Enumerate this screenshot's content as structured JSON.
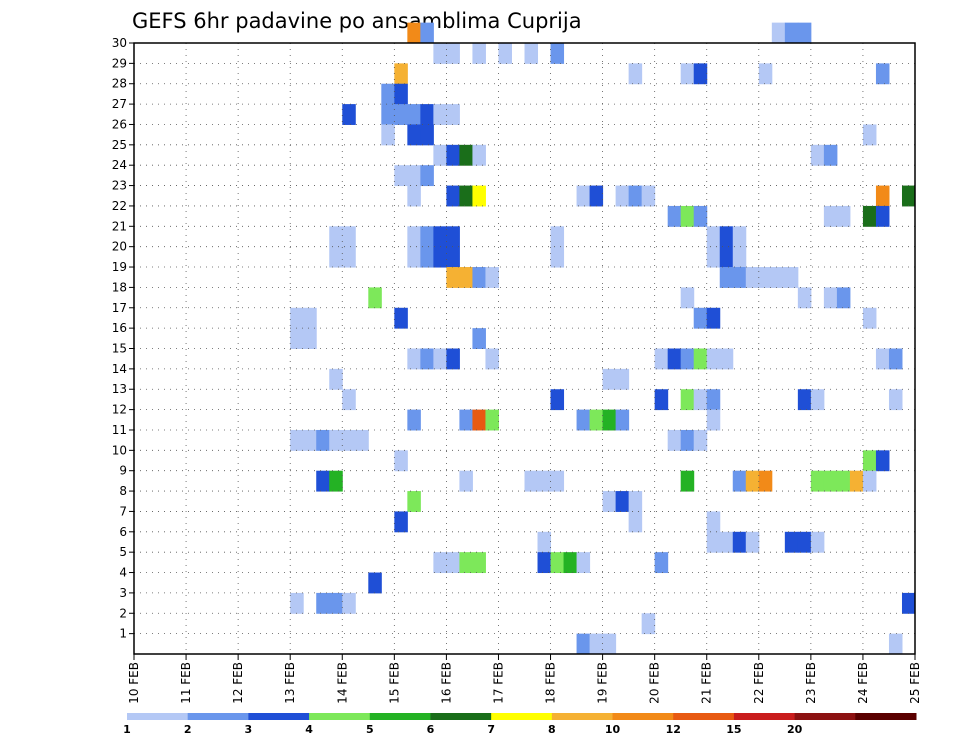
{
  "chart_data": {
    "type": "heatmap",
    "title": "GEFS 6hr padavine po ansamblima Cuprija",
    "x_ticks": [
      "10 FEB",
      "11 FEB",
      "12 FEB",
      "13 FEB",
      "14 FEB",
      "15 FEB",
      "16 FEB",
      "17 FEB",
      "18 FEB",
      "19 FEB",
      "20 FEB",
      "21 FEB",
      "22 FEB",
      "23 FEB",
      "24 FEB",
      "25 FEB"
    ],
    "y_ticks": [
      "1",
      "2",
      "3",
      "4",
      "5",
      "6",
      "7",
      "8",
      "9",
      "10",
      "11",
      "12",
      "13",
      "14",
      "15",
      "16",
      "17",
      "18",
      "19",
      "20",
      "21",
      "22",
      "23",
      "24",
      "25",
      "26",
      "27",
      "28",
      "29",
      "30"
    ],
    "x_unit": "6-hour step from 10 FEB 00Z",
    "xlim": [
      0,
      60
    ],
    "ylim": [
      0,
      30
    ],
    "grid": true,
    "legend_placement": "bottom",
    "legend": {
      "labels": [
        "1",
        "2",
        "3",
        "4",
        "5",
        "6",
        "7",
        "8",
        "10",
        "12",
        "15",
        "20"
      ],
      "colors": [
        "#b4c8f5",
        "#6a96ec",
        "#1f4fd6",
        "#7de85a",
        "#24b224",
        "#1a6e1a",
        "#ffff00",
        "#f5b133",
        "#f28a18",
        "#e85a12",
        "#c91d1d",
        "#8c1111",
        "#5a0000"
      ]
    },
    "cells": [
      {
        "m": 30,
        "t": 21,
        "v": "#f28a18"
      },
      {
        "m": 30,
        "t": 22,
        "v": "#6a96ec"
      },
      {
        "m": 30,
        "t": 49,
        "v": "#b4c8f5"
      },
      {
        "m": 30,
        "t": 50,
        "v": "#6a96ec"
      },
      {
        "m": 30,
        "t": 51,
        "v": "#6a96ec"
      },
      {
        "m": 29,
        "t": 23,
        "v": "#b4c8f5"
      },
      {
        "m": 29,
        "t": 24,
        "v": "#b4c8f5"
      },
      {
        "m": 29,
        "t": 26,
        "v": "#b4c8f5"
      },
      {
        "m": 29,
        "t": 28,
        "v": "#b4c8f5"
      },
      {
        "m": 29,
        "t": 30,
        "v": "#b4c8f5"
      },
      {
        "m": 29,
        "t": 32,
        "v": "#6a96ec"
      },
      {
        "m": 28,
        "t": 20,
        "v": "#f5b133"
      },
      {
        "m": 28,
        "t": 38,
        "v": "#b4c8f5"
      },
      {
        "m": 28,
        "t": 42,
        "v": "#b4c8f5"
      },
      {
        "m": 28,
        "t": 43,
        "v": "#1f4fd6"
      },
      {
        "m": 28,
        "t": 48,
        "v": "#b4c8f5"
      },
      {
        "m": 28,
        "t": 57,
        "v": "#6a96ec"
      },
      {
        "m": 27,
        "t": 19,
        "v": "#6a96ec"
      },
      {
        "m": 27,
        "t": 20,
        "v": "#1f4fd6"
      },
      {
        "m": 26,
        "t": 16,
        "v": "#1f4fd6"
      },
      {
        "m": 26,
        "t": 19,
        "v": "#6a96ec"
      },
      {
        "m": 26,
        "t": 20,
        "v": "#6a96ec"
      },
      {
        "m": 26,
        "t": 21,
        "v": "#6a96ec"
      },
      {
        "m": 26,
        "t": 22,
        "v": "#1f4fd6"
      },
      {
        "m": 26,
        "t": 23,
        "v": "#b4c8f5"
      },
      {
        "m": 26,
        "t": 24,
        "v": "#b4c8f5"
      },
      {
        "m": 25,
        "t": 19,
        "v": "#b4c8f5"
      },
      {
        "m": 25,
        "t": 21,
        "v": "#1f4fd6"
      },
      {
        "m": 25,
        "t": 22,
        "v": "#1f4fd6"
      },
      {
        "m": 25,
        "t": 56,
        "v": "#b4c8f5"
      },
      {
        "m": 24,
        "t": 23,
        "v": "#b4c8f5"
      },
      {
        "m": 24,
        "t": 24,
        "v": "#1f4fd6"
      },
      {
        "m": 24,
        "t": 25,
        "v": "#1a6e1a"
      },
      {
        "m": 24,
        "t": 26,
        "v": "#b4c8f5"
      },
      {
        "m": 24,
        "t": 52,
        "v": "#b4c8f5"
      },
      {
        "m": 24,
        "t": 53,
        "v": "#6a96ec"
      },
      {
        "m": 23,
        "t": 20,
        "v": "#b4c8f5"
      },
      {
        "m": 23,
        "t": 21,
        "v": "#b4c8f5"
      },
      {
        "m": 23,
        "t": 22,
        "v": "#6a96ec"
      },
      {
        "m": 22,
        "t": 21,
        "v": "#b4c8f5"
      },
      {
        "m": 22,
        "t": 24,
        "v": "#1f4fd6"
      },
      {
        "m": 22,
        "t": 25,
        "v": "#1a6e1a"
      },
      {
        "m": 22,
        "t": 26,
        "v": "#ffff00"
      },
      {
        "m": 22,
        "t": 34,
        "v": "#b4c8f5"
      },
      {
        "m": 22,
        "t": 35,
        "v": "#1f4fd6"
      },
      {
        "m": 22,
        "t": 37,
        "v": "#b4c8f5"
      },
      {
        "m": 22,
        "t": 38,
        "v": "#6a96ec"
      },
      {
        "m": 22,
        "t": 39,
        "v": "#b4c8f5"
      },
      {
        "m": 22,
        "t": 57,
        "v": "#f28a18"
      },
      {
        "m": 22,
        "t": 59,
        "v": "#1a6e1a"
      },
      {
        "m": 21,
        "t": 41,
        "v": "#6a96ec"
      },
      {
        "m": 21,
        "t": 42,
        "v": "#7de85a"
      },
      {
        "m": 21,
        "t": 43,
        "v": "#6a96ec"
      },
      {
        "m": 21,
        "t": 53,
        "v": "#b4c8f5"
      },
      {
        "m": 21,
        "t": 54,
        "v": "#b4c8f5"
      },
      {
        "m": 21,
        "t": 56,
        "v": "#1a6e1a"
      },
      {
        "m": 21,
        "t": 57,
        "v": "#1f4fd6"
      },
      {
        "m": 20,
        "t": 15,
        "v": "#b4c8f5"
      },
      {
        "m": 20,
        "t": 16,
        "v": "#b4c8f5"
      },
      {
        "m": 20,
        "t": 21,
        "v": "#b4c8f5"
      },
      {
        "m": 20,
        "t": 22,
        "v": "#6a96ec"
      },
      {
        "m": 20,
        "t": 23,
        "v": "#1f4fd6"
      },
      {
        "m": 20,
        "t": 24,
        "v": "#1f4fd6"
      },
      {
        "m": 20,
        "t": 32,
        "v": "#b4c8f5"
      },
      {
        "m": 20,
        "t": 44,
        "v": "#b4c8f5"
      },
      {
        "m": 20,
        "t": 45,
        "v": "#1f4fd6"
      },
      {
        "m": 20,
        "t": 46,
        "v": "#b4c8f5"
      },
      {
        "m": 19,
        "t": 15,
        "v": "#b4c8f5"
      },
      {
        "m": 19,
        "t": 16,
        "v": "#b4c8f5"
      },
      {
        "m": 19,
        "t": 21,
        "v": "#b4c8f5"
      },
      {
        "m": 19,
        "t": 22,
        "v": "#6a96ec"
      },
      {
        "m": 19,
        "t": 23,
        "v": "#1f4fd6"
      },
      {
        "m": 19,
        "t": 24,
        "v": "#1f4fd6"
      },
      {
        "m": 19,
        "t": 32,
        "v": "#b4c8f5"
      },
      {
        "m": 19,
        "t": 44,
        "v": "#b4c8f5"
      },
      {
        "m": 19,
        "t": 45,
        "v": "#1f4fd6"
      },
      {
        "m": 19,
        "t": 46,
        "v": "#b4c8f5"
      },
      {
        "m": 18,
        "t": 24,
        "v": "#f5b133"
      },
      {
        "m": 18,
        "t": 25,
        "v": "#f5b133"
      },
      {
        "m": 18,
        "t": 26,
        "v": "#6a96ec"
      },
      {
        "m": 18,
        "t": 27,
        "v": "#b4c8f5"
      },
      {
        "m": 18,
        "t": 45,
        "v": "#6a96ec"
      },
      {
        "m": 18,
        "t": 46,
        "v": "#6a96ec"
      },
      {
        "m": 18,
        "t": 47,
        "v": "#b4c8f5"
      },
      {
        "m": 18,
        "t": 48,
        "v": "#b4c8f5"
      },
      {
        "m": 18,
        "t": 49,
        "v": "#b4c8f5"
      },
      {
        "m": 18,
        "t": 50,
        "v": "#b4c8f5"
      },
      {
        "m": 17,
        "t": 18,
        "v": "#7de85a"
      },
      {
        "m": 17,
        "t": 42,
        "v": "#b4c8f5"
      },
      {
        "m": 17,
        "t": 51,
        "v": "#b4c8f5"
      },
      {
        "m": 17,
        "t": 53,
        "v": "#b4c8f5"
      },
      {
        "m": 17,
        "t": 54,
        "v": "#6a96ec"
      },
      {
        "m": 16,
        "t": 12,
        "v": "#b4c8f5"
      },
      {
        "m": 16,
        "t": 13,
        "v": "#b4c8f5"
      },
      {
        "m": 16,
        "t": 20,
        "v": "#1f4fd6"
      },
      {
        "m": 16,
        "t": 43,
        "v": "#6a96ec"
      },
      {
        "m": 16,
        "t": 44,
        "v": "#1f4fd6"
      },
      {
        "m": 16,
        "t": 56,
        "v": "#b4c8f5"
      },
      {
        "m": 15,
        "t": 12,
        "v": "#b4c8f5"
      },
      {
        "m": 15,
        "t": 13,
        "v": "#b4c8f5"
      },
      {
        "m": 15,
        "t": 26,
        "v": "#6a96ec"
      },
      {
        "m": 14,
        "t": 21,
        "v": "#b4c8f5"
      },
      {
        "m": 14,
        "t": 22,
        "v": "#6a96ec"
      },
      {
        "m": 14,
        "t": 23,
        "v": "#b4c8f5"
      },
      {
        "m": 14,
        "t": 24,
        "v": "#1f4fd6"
      },
      {
        "m": 14,
        "t": 27,
        "v": "#b4c8f5"
      },
      {
        "m": 14,
        "t": 40,
        "v": "#b4c8f5"
      },
      {
        "m": 14,
        "t": 41,
        "v": "#1f4fd6"
      },
      {
        "m": 14,
        "t": 42,
        "v": "#6a96ec"
      },
      {
        "m": 14,
        "t": 43,
        "v": "#7de85a"
      },
      {
        "m": 14,
        "t": 44,
        "v": "#b4c8f5"
      },
      {
        "m": 14,
        "t": 45,
        "v": "#b4c8f5"
      },
      {
        "m": 14,
        "t": 57,
        "v": "#b4c8f5"
      },
      {
        "m": 14,
        "t": 58,
        "v": "#6a96ec"
      },
      {
        "m": 13,
        "t": 15,
        "v": "#b4c8f5"
      },
      {
        "m": 13,
        "t": 36,
        "v": "#b4c8f5"
      },
      {
        "m": 13,
        "t": 37,
        "v": "#b4c8f5"
      },
      {
        "m": 12,
        "t": 16,
        "v": "#b4c8f5"
      },
      {
        "m": 12,
        "t": 32,
        "v": "#1f4fd6"
      },
      {
        "m": 12,
        "t": 40,
        "v": "#1f4fd6"
      },
      {
        "m": 12,
        "t": 42,
        "v": "#7de85a"
      },
      {
        "m": 12,
        "t": 43,
        "v": "#b4c8f5"
      },
      {
        "m": 12,
        "t": 44,
        "v": "#6a96ec"
      },
      {
        "m": 12,
        "t": 51,
        "v": "#1f4fd6"
      },
      {
        "m": 12,
        "t": 52,
        "v": "#b4c8f5"
      },
      {
        "m": 12,
        "t": 58,
        "v": "#b4c8f5"
      },
      {
        "m": 11,
        "t": 21,
        "v": "#6a96ec"
      },
      {
        "m": 11,
        "t": 25,
        "v": "#6a96ec"
      },
      {
        "m": 11,
        "t": 26,
        "v": "#e85a12"
      },
      {
        "m": 11,
        "t": 27,
        "v": "#7de85a"
      },
      {
        "m": 11,
        "t": 34,
        "v": "#6a96ec"
      },
      {
        "m": 11,
        "t": 35,
        "v": "#7de85a"
      },
      {
        "m": 11,
        "t": 36,
        "v": "#24b224"
      },
      {
        "m": 11,
        "t": 37,
        "v": "#6a96ec"
      },
      {
        "m": 11,
        "t": 44,
        "v": "#b4c8f5"
      },
      {
        "m": 10,
        "t": 12,
        "v": "#b4c8f5"
      },
      {
        "m": 10,
        "t": 13,
        "v": "#b4c8f5"
      },
      {
        "m": 10,
        "t": 14,
        "v": "#6a96ec"
      },
      {
        "m": 10,
        "t": 15,
        "v": "#b4c8f5"
      },
      {
        "m": 10,
        "t": 16,
        "v": "#b4c8f5"
      },
      {
        "m": 10,
        "t": 17,
        "v": "#b4c8f5"
      },
      {
        "m": 10,
        "t": 41,
        "v": "#b4c8f5"
      },
      {
        "m": 10,
        "t": 42,
        "v": "#6a96ec"
      },
      {
        "m": 10,
        "t": 43,
        "v": "#b4c8f5"
      },
      {
        "m": 9,
        "t": 20,
        "v": "#b4c8f5"
      },
      {
        "m": 9,
        "t": 56,
        "v": "#7de85a"
      },
      {
        "m": 9,
        "t": 57,
        "v": "#1f4fd6"
      },
      {
        "m": 8,
        "t": 14,
        "v": "#1f4fd6"
      },
      {
        "m": 8,
        "t": 15,
        "v": "#24b224"
      },
      {
        "m": 8,
        "t": 25,
        "v": "#b4c8f5"
      },
      {
        "m": 8,
        "t": 30,
        "v": "#b4c8f5"
      },
      {
        "m": 8,
        "t": 31,
        "v": "#b4c8f5"
      },
      {
        "m": 8,
        "t": 32,
        "v": "#b4c8f5"
      },
      {
        "m": 8,
        "t": 42,
        "v": "#24b224"
      },
      {
        "m": 8,
        "t": 46,
        "v": "#6a96ec"
      },
      {
        "m": 8,
        "t": 47,
        "v": "#f5b133"
      },
      {
        "m": 8,
        "t": 48,
        "v": "#f28a18"
      },
      {
        "m": 8,
        "t": 52,
        "v": "#7de85a"
      },
      {
        "m": 8,
        "t": 53,
        "v": "#7de85a"
      },
      {
        "m": 8,
        "t": 54,
        "v": "#7de85a"
      },
      {
        "m": 8,
        "t": 55,
        "v": "#f5b133"
      },
      {
        "m": 8,
        "t": 56,
        "v": "#b4c8f5"
      },
      {
        "m": 7,
        "t": 21,
        "v": "#7de85a"
      },
      {
        "m": 7,
        "t": 36,
        "v": "#b4c8f5"
      },
      {
        "m": 7,
        "t": 37,
        "v": "#1f4fd6"
      },
      {
        "m": 7,
        "t": 38,
        "v": "#b4c8f5"
      },
      {
        "m": 6,
        "t": 20,
        "v": "#1f4fd6"
      },
      {
        "m": 6,
        "t": 38,
        "v": "#b4c8f5"
      },
      {
        "m": 6,
        "t": 44,
        "v": "#b4c8f5"
      },
      {
        "m": 5,
        "t": 31,
        "v": "#b4c8f5"
      },
      {
        "m": 5,
        "t": 44,
        "v": "#b4c8f5"
      },
      {
        "m": 5,
        "t": 45,
        "v": "#b4c8f5"
      },
      {
        "m": 5,
        "t": 46,
        "v": "#1f4fd6"
      },
      {
        "m": 5,
        "t": 47,
        "v": "#b4c8f5"
      },
      {
        "m": 5,
        "t": 50,
        "v": "#1f4fd6"
      },
      {
        "m": 5,
        "t": 51,
        "v": "#1f4fd6"
      },
      {
        "m": 5,
        "t": 52,
        "v": "#b4c8f5"
      },
      {
        "m": 4,
        "t": 23,
        "v": "#b4c8f5"
      },
      {
        "m": 4,
        "t": 24,
        "v": "#b4c8f5"
      },
      {
        "m": 4,
        "t": 25,
        "v": "#7de85a"
      },
      {
        "m": 4,
        "t": 26,
        "v": "#7de85a"
      },
      {
        "m": 4,
        "t": 31,
        "v": "#1f4fd6"
      },
      {
        "m": 4,
        "t": 32,
        "v": "#7de85a"
      },
      {
        "m": 4,
        "t": 33,
        "v": "#24b224"
      },
      {
        "m": 4,
        "t": 34,
        "v": "#b4c8f5"
      },
      {
        "m": 4,
        "t": 40,
        "v": "#6a96ec"
      },
      {
        "m": 3,
        "t": 18,
        "v": "#1f4fd6"
      },
      {
        "m": 2,
        "t": 12,
        "v": "#b4c8f5"
      },
      {
        "m": 2,
        "t": 14,
        "v": "#6a96ec"
      },
      {
        "m": 2,
        "t": 15,
        "v": "#6a96ec"
      },
      {
        "m": 2,
        "t": 16,
        "v": "#b4c8f5"
      },
      {
        "m": 2,
        "t": 59,
        "v": "#1f4fd6"
      },
      {
        "m": 1,
        "t": 39,
        "v": "#b4c8f5"
      },
      {
        "m": 0,
        "t": 34,
        "v": "#6a96ec"
      },
      {
        "m": 0,
        "t": 35,
        "v": "#b4c8f5"
      },
      {
        "m": 0,
        "t": 36,
        "v": "#b4c8f5"
      },
      {
        "m": 0,
        "t": 58,
        "v": "#b4c8f5"
      }
    ]
  }
}
